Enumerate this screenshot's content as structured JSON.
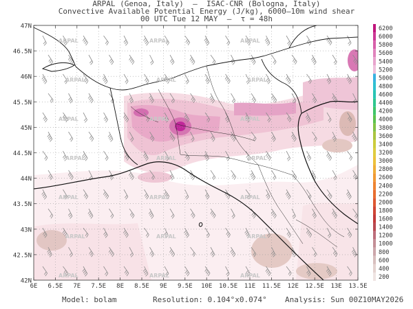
{
  "header": {
    "line1": "ARPAL (Genoa, Italy)  —  ISAC-CNR (Bologna, Italy)",
    "line2": "Convective Available Potential Energy (J/kg), 6000–10m wind shear",
    "line3": "00 UTC Tue 12 MAY  —  τ = 48h"
  },
  "map": {
    "lat_labels": [
      "47N",
      "46.5N",
      "46N",
      "45.5N",
      "45N",
      "44.5N",
      "44N",
      "43.5N",
      "43N",
      "42.5N",
      "42N"
    ],
    "lon_labels": [
      "6E",
      "6.5E",
      "7E",
      "7.5E",
      "8E",
      "8.5E",
      "9E",
      "9.5E",
      "10E",
      "10.5E",
      "11E",
      "11.5E",
      "12E",
      "12.5E",
      "13E",
      "13.5E"
    ],
    "lat_range": [
      42,
      47
    ],
    "lon_range": [
      6,
      13.5
    ],
    "watermark": "ARPAL"
  },
  "colorbar": {
    "levels": [
      "6200",
      "6000",
      "5800",
      "5600",
      "5400",
      "5200",
      "5000",
      "4800",
      "4600",
      "4400",
      "4200",
      "4000",
      "3800",
      "3600",
      "3400",
      "3200",
      "3000",
      "2800",
      "2600",
      "2400",
      "2200",
      "2000",
      "1800",
      "1600",
      "1400",
      "1200",
      "1000",
      "800",
      "600",
      "400",
      "200"
    ],
    "colors": [
      "#c0157c",
      "#cc3a96",
      "#d760aa",
      "#e084bd",
      "#e8a4cd",
      "#efc0dc",
      "#39b1e0",
      "#30c0d0",
      "#2ac4b4",
      "#2fc68f",
      "#40c56a",
      "#5cc24e",
      "#83c246",
      "#aac440",
      "#cccc3e",
      "#dfcc40",
      "#ecc13c",
      "#efae38",
      "#f09a34",
      "#ee8432",
      "#e86e30",
      "#de5832",
      "#d04636",
      "#c23a3a",
      "#b84a52",
      "#bd6e7c",
      "#c38e96",
      "#cca6aa",
      "#d8bfbe",
      "#e5d3d0",
      "#efe4e2"
    ]
  },
  "footer": {
    "model": "Model: bolam",
    "resolution": "Resolution: 0.104°x0.074°",
    "analysis": "Analysis: Sun 00Z10MAY2026"
  }
}
